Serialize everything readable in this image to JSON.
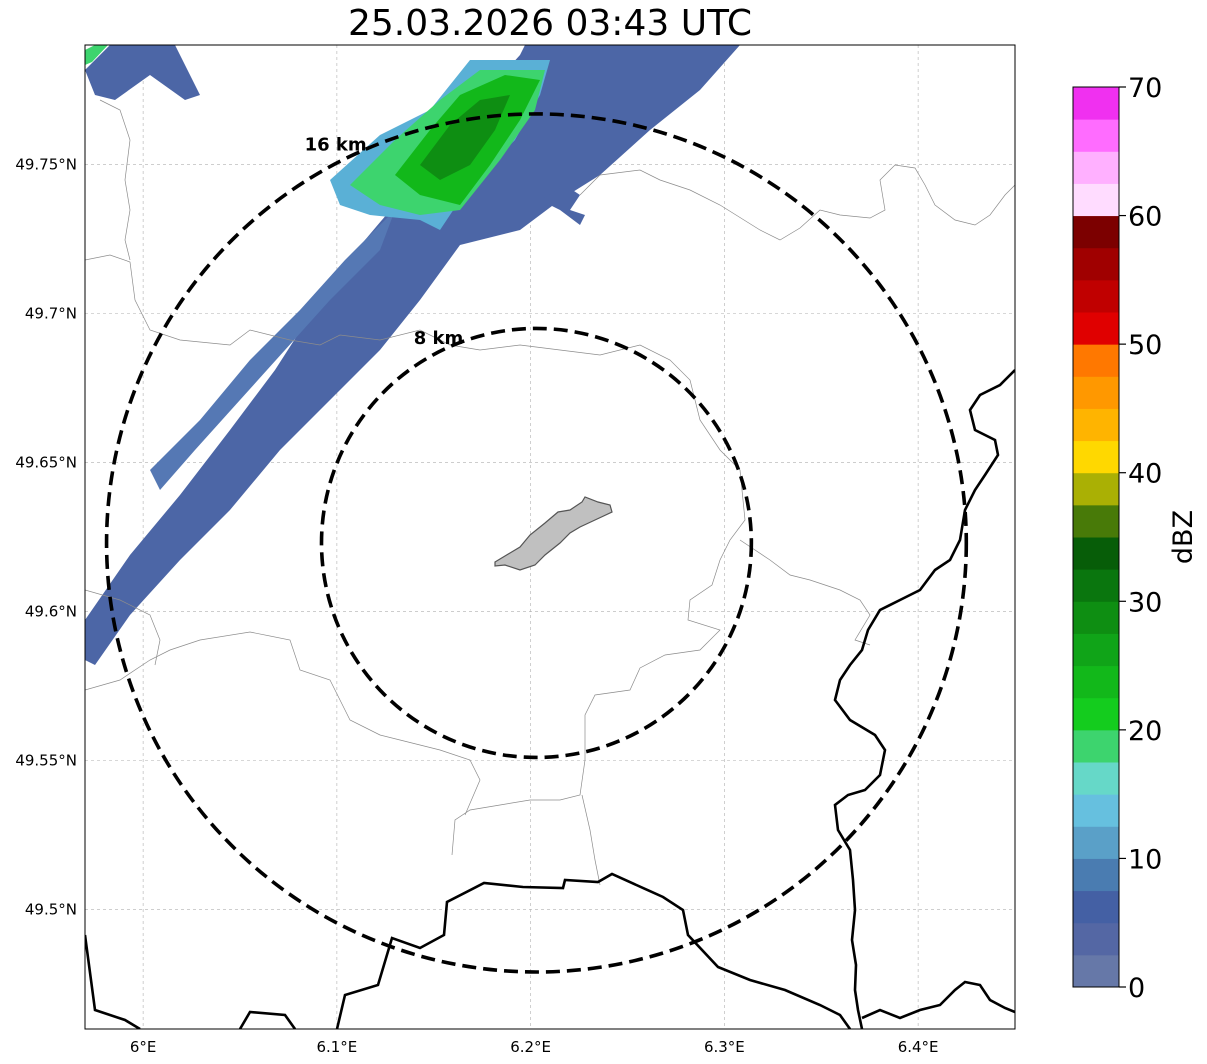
{
  "title": "25.03.2026 03:43 UTC",
  "map": {
    "lon_ticks": [
      {
        "lon": 6.0,
        "label": "6°E"
      },
      {
        "lon": 6.1,
        "label": "6.1°E"
      },
      {
        "lon": 6.2,
        "label": "6.2°E"
      },
      {
        "lon": 6.3,
        "label": "6.3°E"
      },
      {
        "lon": 6.4,
        "label": "6.4°E"
      }
    ],
    "lat_ticks": [
      {
        "lat": 49.75,
        "label": "49.75°N"
      },
      {
        "lat": 49.7,
        "label": "49.7°N"
      },
      {
        "lat": 49.65,
        "label": "49.65°N"
      },
      {
        "lat": 49.6,
        "label": "49.6°N"
      },
      {
        "lat": 49.55,
        "label": "49.55°N"
      },
      {
        "lat": 49.5,
        "label": "49.5°N"
      }
    ],
    "extent": {
      "lon_min": 5.97,
      "lon_max": 6.45,
      "lat_min": 49.46,
      "lat_max": 49.79
    },
    "center": {
      "lon": 6.203,
      "lat": 49.623
    },
    "range_rings": [
      {
        "radius_km": 8,
        "label": "8 km"
      },
      {
        "radius_km": 16,
        "label": "16 km"
      }
    ],
    "grid": true
  },
  "colorbar": {
    "label": "dBZ",
    "ticks": [
      "0",
      "10",
      "20",
      "30",
      "40",
      "50",
      "60",
      "70"
    ],
    "min": 0,
    "max": 70,
    "colors": [
      "#6678a8",
      "#5467a4",
      "#4460a4",
      "#4a7cb1",
      "#5aa0c8",
      "#66c0df",
      "#66d8c8",
      "#3dd46e",
      "#14cc1e",
      "#12b81a",
      "#10a418",
      "#0e8e12",
      "#0a760e",
      "#075d08",
      "#487a08",
      "#aab004",
      "#ffd800",
      "#ffb400",
      "#ff9800",
      "#ff7800",
      "#e00000",
      "#c00000",
      "#a00000",
      "#7c0000",
      "#ffdcff",
      "#ffb0ff",
      "#ff6cff",
      "#f030f0"
    ]
  }
}
